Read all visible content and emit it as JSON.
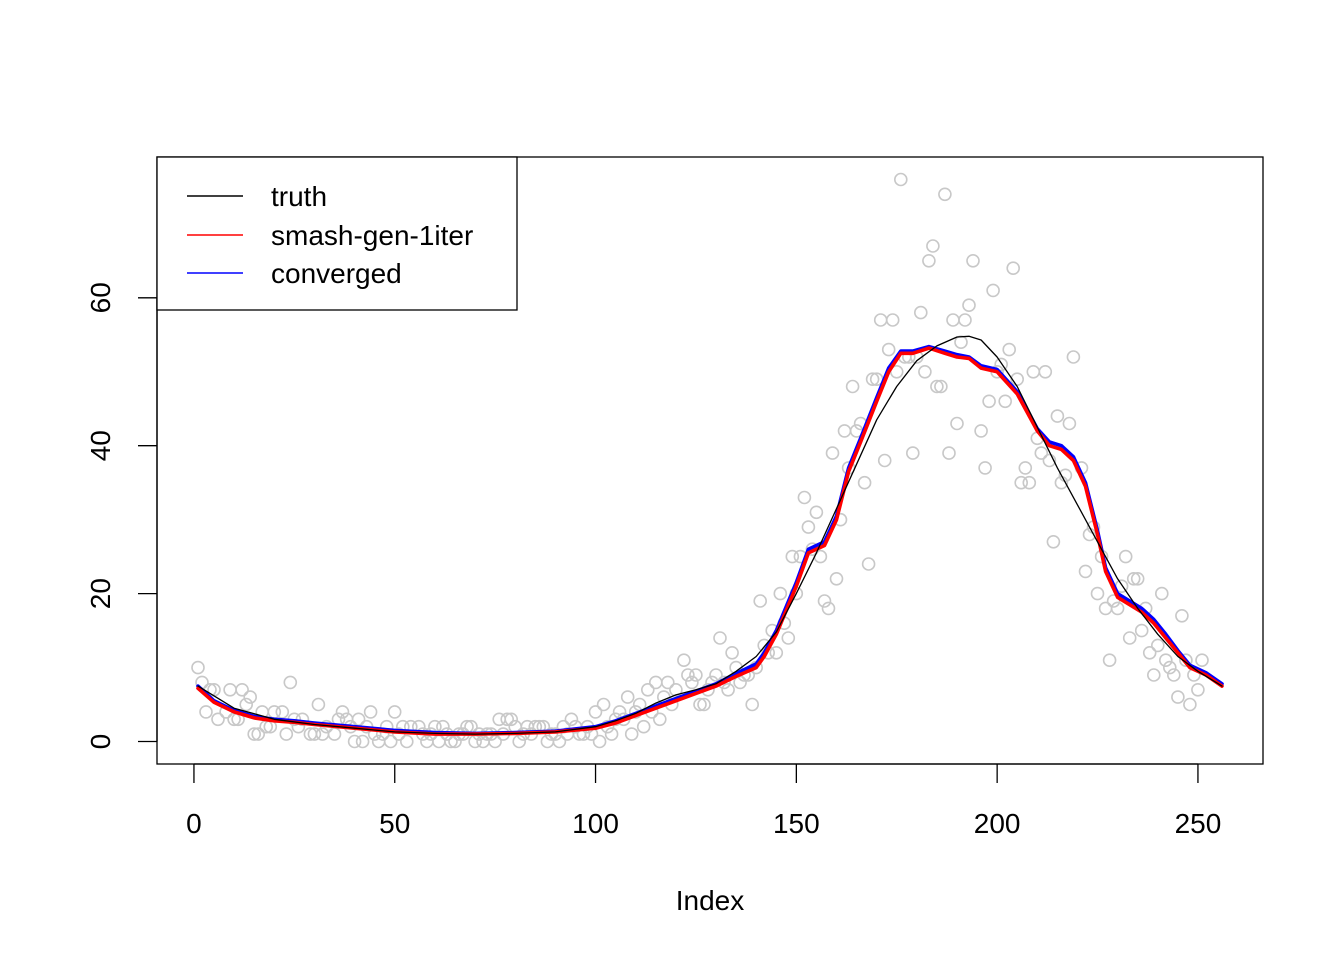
{
  "chart_data": {
    "type": "scatter",
    "xlabel": "Index",
    "ylabel": "",
    "title": "",
    "xlim": [
      -9.2,
      266.2
    ],
    "ylim": [
      -3.04,
      79.04
    ],
    "x_ticks": [
      0,
      50,
      100,
      150,
      200,
      250
    ],
    "y_ticks": [
      0,
      20,
      40,
      60
    ],
    "x_tick_labels": [
      "0",
      "50",
      "100",
      "150",
      "200",
      "250"
    ],
    "y_tick_labels": [
      "0",
      "20",
      "40",
      "60"
    ],
    "legend": {
      "position": "top-left",
      "entries": [
        {
          "label": "truth",
          "color": "#000000"
        },
        {
          "label": "smash-gen-1iter",
          "color": "#ff0000"
        },
        {
          "label": "converged",
          "color": "#0000ff"
        }
      ]
    },
    "points_color": "#c8c8c8",
    "points": [
      [
        1,
        10
      ],
      [
        2,
        8
      ],
      [
        3,
        4
      ],
      [
        4,
        7
      ],
      [
        5,
        7
      ],
      [
        6,
        3
      ],
      [
        8,
        4
      ],
      [
        9,
        7
      ],
      [
        10,
        3
      ],
      [
        11,
        3
      ],
      [
        12,
        7
      ],
      [
        13,
        5
      ],
      [
        14,
        6
      ],
      [
        15,
        1
      ],
      [
        16,
        1
      ],
      [
        17,
        4
      ],
      [
        18,
        2
      ],
      [
        19,
        2
      ],
      [
        20,
        4
      ],
      [
        22,
        4
      ],
      [
        23,
        1
      ],
      [
        24,
        8
      ],
      [
        25,
        3
      ],
      [
        26,
        2
      ],
      [
        27,
        3
      ],
      [
        29,
        1
      ],
      [
        30,
        1
      ],
      [
        31,
        5
      ],
      [
        32,
        1
      ],
      [
        33,
        2
      ],
      [
        35,
        1
      ],
      [
        36,
        3
      ],
      [
        37,
        4
      ],
      [
        38,
        3
      ],
      [
        39,
        2
      ],
      [
        40,
        0
      ],
      [
        41,
        3
      ],
      [
        42,
        0
      ],
      [
        43,
        2
      ],
      [
        44,
        4
      ],
      [
        45,
        1
      ],
      [
        46,
        0
      ],
      [
        47,
        1
      ],
      [
        48,
        2
      ],
      [
        49,
        0
      ],
      [
        50,
        4
      ],
      [
        51,
        1
      ],
      [
        52,
        2
      ],
      [
        53,
        0
      ],
      [
        54,
        2
      ],
      [
        56,
        2
      ],
      [
        57,
        1
      ],
      [
        58,
        0
      ],
      [
        59,
        1
      ],
      [
        60,
        2
      ],
      [
        61,
        0
      ],
      [
        62,
        2
      ],
      [
        63,
        1
      ],
      [
        64,
        0
      ],
      [
        65,
        0
      ],
      [
        66,
        1
      ],
      [
        67,
        1
      ],
      [
        68,
        2
      ],
      [
        69,
        2
      ],
      [
        70,
        0
      ],
      [
        71,
        1
      ],
      [
        72,
        0
      ],
      [
        73,
        1
      ],
      [
        74,
        1
      ],
      [
        75,
        0
      ],
      [
        76,
        3
      ],
      [
        77,
        1
      ],
      [
        78,
        3
      ],
      [
        79,
        3
      ],
      [
        80,
        2
      ],
      [
        81,
        0
      ],
      [
        82,
        1
      ],
      [
        83,
        2
      ],
      [
        84,
        1
      ],
      [
        85,
        2
      ],
      [
        86,
        2
      ],
      [
        87,
        2
      ],
      [
        88,
        0
      ],
      [
        89,
        1
      ],
      [
        90,
        1
      ],
      [
        91,
        0
      ],
      [
        92,
        2
      ],
      [
        93,
        1
      ],
      [
        94,
        3
      ],
      [
        95,
        2
      ],
      [
        96,
        1
      ],
      [
        97,
        1
      ],
      [
        98,
        2
      ],
      [
        99,
        1
      ],
      [
        100,
        4
      ],
      [
        101,
        0
      ],
      [
        102,
        5
      ],
      [
        103,
        2
      ],
      [
        104,
        1
      ],
      [
        105,
        3
      ],
      [
        106,
        4
      ],
      [
        107,
        3
      ],
      [
        108,
        6
      ],
      [
        109,
        1
      ],
      [
        110,
        4
      ],
      [
        111,
        5
      ],
      [
        112,
        2
      ],
      [
        113,
        7
      ],
      [
        114,
        4
      ],
      [
        115,
        8
      ],
      [
        116,
        3
      ],
      [
        117,
        6
      ],
      [
        118,
        8
      ],
      [
        119,
        5
      ],
      [
        120,
        7
      ],
      [
        122,
        11
      ],
      [
        123,
        9
      ],
      [
        124,
        8
      ],
      [
        125,
        9
      ],
      [
        126,
        5
      ],
      [
        127,
        5
      ],
      [
        128,
        7
      ],
      [
        129,
        8
      ],
      [
        130,
        9
      ],
      [
        131,
        14
      ],
      [
        132,
        8
      ],
      [
        133,
        7
      ],
      [
        134,
        12
      ],
      [
        135,
        10
      ],
      [
        136,
        8
      ],
      [
        137,
        9
      ],
      [
        138,
        9
      ],
      [
        139,
        5
      ],
      [
        140,
        10
      ],
      [
        141,
        19
      ],
      [
        142,
        13
      ],
      [
        143,
        12
      ],
      [
        144,
        15
      ],
      [
        145,
        12
      ],
      [
        146,
        20
      ],
      [
        147,
        16
      ],
      [
        148,
        14
      ],
      [
        149,
        25
      ],
      [
        150,
        20
      ],
      [
        151,
        25
      ],
      [
        152,
        33
      ],
      [
        153,
        29
      ],
      [
        154,
        26
      ],
      [
        155,
        31
      ],
      [
        156,
        25
      ],
      [
        157,
        19
      ],
      [
        158,
        18
      ],
      [
        159,
        39
      ],
      [
        160,
        22
      ],
      [
        161,
        30
      ],
      [
        162,
        42
      ],
      [
        163,
        37
      ],
      [
        164,
        48
      ],
      [
        165,
        42
      ],
      [
        166,
        43
      ],
      [
        167,
        35
      ],
      [
        168,
        24
      ],
      [
        169,
        49
      ],
      [
        170,
        49
      ],
      [
        171,
        57
      ],
      [
        172,
        38
      ],
      [
        173,
        53
      ],
      [
        174,
        57
      ],
      [
        175,
        50
      ],
      [
        176,
        76
      ],
      [
        177,
        52
      ],
      [
        178,
        52
      ],
      [
        179,
        39
      ],
      [
        180,
        52
      ],
      [
        181,
        58
      ],
      [
        182,
        50
      ],
      [
        183,
        65
      ],
      [
        184,
        67
      ],
      [
        185,
        48
      ],
      [
        186,
        48
      ],
      [
        187,
        74
      ],
      [
        188,
        39
      ],
      [
        189,
        57
      ],
      [
        190,
        43
      ],
      [
        191,
        54
      ],
      [
        192,
        57
      ],
      [
        193,
        59
      ],
      [
        194,
        65
      ],
      [
        196,
        42
      ],
      [
        197,
        37
      ],
      [
        198,
        46
      ],
      [
        199,
        61
      ],
      [
        200,
        50
      ],
      [
        201,
        51
      ],
      [
        202,
        46
      ],
      [
        203,
        53
      ],
      [
        204,
        64
      ],
      [
        205,
        49
      ],
      [
        206,
        35
      ],
      [
        207,
        37
      ],
      [
        208,
        35
      ],
      [
        209,
        50
      ],
      [
        210,
        41
      ],
      [
        211,
        39
      ],
      [
        212,
        50
      ],
      [
        213,
        38
      ],
      [
        214,
        27
      ],
      [
        215,
        44
      ],
      [
        216,
        35
      ],
      [
        217,
        36
      ],
      [
        218,
        43
      ],
      [
        219,
        52
      ],
      [
        221,
        37
      ],
      [
        222,
        23
      ],
      [
        223,
        28
      ],
      [
        224,
        29
      ],
      [
        225,
        20
      ],
      [
        226,
        25
      ],
      [
        227,
        18
      ],
      [
        228,
        11
      ],
      [
        229,
        19
      ],
      [
        230,
        18
      ],
      [
        231,
        21
      ],
      [
        232,
        25
      ],
      [
        233,
        14
      ],
      [
        234,
        22
      ],
      [
        235,
        22
      ],
      [
        236,
        15
      ],
      [
        237,
        18
      ],
      [
        238,
        12
      ],
      [
        239,
        9
      ],
      [
        240,
        13
      ],
      [
        241,
        20
      ],
      [
        242,
        11
      ],
      [
        243,
        10
      ],
      [
        244,
        9
      ],
      [
        245,
        6
      ],
      [
        246,
        17
      ],
      [
        247,
        11
      ],
      [
        248,
        5
      ],
      [
        249,
        9
      ],
      [
        250,
        7
      ],
      [
        251,
        11
      ]
    ],
    "series": [
      {
        "name": "truth",
        "color": "#000000",
        "x": [
          1,
          10,
          20,
          30,
          40,
          50,
          60,
          70,
          80,
          90,
          100,
          105,
          110,
          115,
          120,
          125,
          130,
          135,
          140,
          145,
          150,
          155,
          160,
          165,
          170,
          175,
          180,
          185,
          190,
          193,
          196,
          200,
          205,
          210,
          215,
          220,
          225,
          230,
          235,
          240,
          245,
          250,
          256
        ],
        "y": [
          7.5,
          4.5,
          3.0,
          2.3,
          1.8,
          1.3,
          1.1,
          1.0,
          1.1,
          1.3,
          2.0,
          2.8,
          3.8,
          5.2,
          6.3,
          7.0,
          7.8,
          9.5,
          11.5,
          14.8,
          20.0,
          25.5,
          31.5,
          37.5,
          43.5,
          48.0,
          51.5,
          53.5,
          54.7,
          54.8,
          54.3,
          52.0,
          48.0,
          42.5,
          37.0,
          32.0,
          27.0,
          22.0,
          18.0,
          14.5,
          11.5,
          9.5,
          7.5
        ]
      },
      {
        "name": "smash-gen-1iter",
        "color": "#ff0000",
        "x": [
          1,
          5,
          10,
          15,
          20,
          25,
          30,
          40,
          50,
          60,
          70,
          80,
          90,
          100,
          105,
          110,
          115,
          120,
          125,
          130,
          135,
          140,
          142,
          145,
          150,
          153,
          157,
          160,
          163,
          166,
          170,
          173,
          176,
          179,
          183,
          187,
          190,
          193,
          196,
          200,
          205,
          208,
          210,
          213,
          216,
          219,
          222,
          225,
          227,
          230,
          233,
          236,
          239,
          242,
          245,
          248,
          252,
          256
        ],
        "y": [
          7.2,
          5.3,
          4.0,
          3.2,
          2.8,
          2.6,
          2.3,
          1.8,
          1.3,
          1.0,
          1.0,
          1.1,
          1.3,
          1.8,
          2.5,
          3.5,
          4.5,
          5.5,
          6.5,
          7.5,
          8.8,
          10.0,
          11.5,
          14.5,
          21.0,
          25.5,
          26.5,
          30.0,
          36.5,
          40.5,
          46.0,
          50.0,
          52.5,
          52.5,
          53.2,
          52.5,
          52.0,
          51.8,
          50.5,
          50.0,
          47.0,
          44.0,
          42.0,
          40.0,
          39.5,
          38.0,
          34.5,
          28.0,
          23.0,
          19.5,
          18.5,
          17.5,
          16.0,
          14.0,
          12.0,
          10.0,
          9.0,
          7.5
        ]
      },
      {
        "name": "converged",
        "color": "#0000ff",
        "x": [
          1,
          5,
          10,
          15,
          20,
          25,
          30,
          40,
          50,
          60,
          70,
          80,
          90,
          100,
          105,
          110,
          115,
          120,
          125,
          130,
          135,
          140,
          142,
          145,
          150,
          153,
          157,
          160,
          163,
          166,
          170,
          173,
          176,
          179,
          183,
          187,
          190,
          193,
          196,
          200,
          205,
          208,
          210,
          213,
          216,
          219,
          222,
          225,
          227,
          230,
          233,
          236,
          239,
          242,
          245,
          248,
          252,
          256
        ],
        "y": [
          7.5,
          5.5,
          4.2,
          3.4,
          3.0,
          2.8,
          2.5,
          2.0,
          1.5,
          1.2,
          1.1,
          1.2,
          1.4,
          2.0,
          2.8,
          3.8,
          4.8,
          5.8,
          6.8,
          7.8,
          9.2,
          10.5,
          12.0,
          15.0,
          21.5,
          26.0,
          27.0,
          30.5,
          37.0,
          41.0,
          46.5,
          50.5,
          52.8,
          52.8,
          53.4,
          52.8,
          52.3,
          52.0,
          50.8,
          50.3,
          47.3,
          44.3,
          42.3,
          40.5,
          40.0,
          38.5,
          35.0,
          28.5,
          23.5,
          20.0,
          19.0,
          18.0,
          16.5,
          14.5,
          12.3,
          10.3,
          9.3,
          7.8
        ]
      }
    ]
  }
}
